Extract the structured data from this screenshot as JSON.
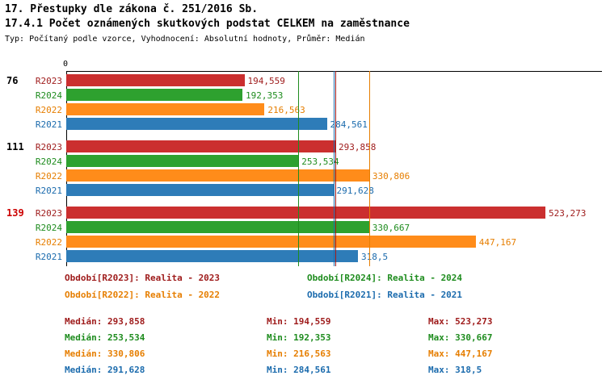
{
  "header": {
    "title_line1": "17. Přestupky dle zákona č. 251/2016 Sb.",
    "title_line2": "17.4.1 Počet oznámených skutkových podstat CELKEM na zaměstnance",
    "subtitle": "Typ: Počítaný podle vzorce, Vyhodnocení: Absolutní hodnoty, Průměr: Medián"
  },
  "colors": {
    "R2023": {
      "bar": "#CB2F2F",
      "text": "#9E1A1A"
    },
    "R2024": {
      "bar": "#2EA12F",
      "text": "#1E8C1E"
    },
    "R2022": {
      "bar": "#FF8C1A",
      "text": "#E67E00"
    },
    "R2021": {
      "bar": "#2E7CB8",
      "text": "#1B6BAD"
    },
    "axis": "#000000"
  },
  "chart_data": {
    "type": "bar",
    "orientation": "horizontal",
    "title": "17.4.1 Počet oznámených skutkových podstat CELKEM na zaměstnance",
    "x_axis": {
      "origin_label": "0",
      "min": 0,
      "max": 585,
      "grid": false
    },
    "series_order": [
      "R2023",
      "R2024",
      "R2022",
      "R2021"
    ],
    "groups": [
      {
        "label": "76",
        "label_color": "#000000",
        "bars": [
          {
            "series": "R2023",
            "value": 194.559,
            "value_label": "194,559"
          },
          {
            "series": "R2024",
            "value": 192.353,
            "value_label": "192,353"
          },
          {
            "series": "R2022",
            "value": 216.563,
            "value_label": "216,563"
          },
          {
            "series": "R2021",
            "value": 284.561,
            "value_label": "284,561"
          }
        ]
      },
      {
        "label": "111",
        "label_color": "#000000",
        "bars": [
          {
            "series": "R2023",
            "value": 293.858,
            "value_label": "293,858"
          },
          {
            "series": "R2024",
            "value": 253.534,
            "value_label": "253,534"
          },
          {
            "series": "R2022",
            "value": 330.806,
            "value_label": "330,806"
          },
          {
            "series": "R2021",
            "value": 291.628,
            "value_label": "291,628"
          }
        ]
      },
      {
        "label": "139",
        "label_color": "#CC0000",
        "bars": [
          {
            "series": "R2023",
            "value": 523.273,
            "value_label": "523,273"
          },
          {
            "series": "R2024",
            "value": 330.667,
            "value_label": "330,667"
          },
          {
            "series": "R2022",
            "value": 447.167,
            "value_label": "447,167"
          },
          {
            "series": "R2021",
            "value": 318.5,
            "value_label": "318,5"
          }
        ]
      }
    ],
    "median_lines": [
      {
        "series": "R2023",
        "value": 293.858
      },
      {
        "series": "R2024",
        "value": 253.534
      },
      {
        "series": "R2022",
        "value": 330.806
      },
      {
        "series": "R2021",
        "value": 291.628
      }
    ]
  },
  "legend": [
    {
      "series": "R2023",
      "label": "Období[R2023]: Realita - 2023"
    },
    {
      "series": "R2024",
      "label": "Období[R2024]: Realita - 2024"
    },
    {
      "series": "R2022",
      "label": "Období[R2022]: Realita - 2022"
    },
    {
      "series": "R2021",
      "label": "Období[R2021]: Realita - 2021"
    }
  ],
  "stats": [
    {
      "series": "R2023",
      "median": "Medián: 293,858",
      "min": "Min: 194,559",
      "max": "Max: 523,273"
    },
    {
      "series": "R2024",
      "median": "Medián: 253,534",
      "min": "Min: 192,353",
      "max": "Max: 330,667"
    },
    {
      "series": "R2022",
      "median": "Medián: 330,806",
      "min": "Min: 216,563",
      "max": "Max: 447,167"
    },
    {
      "series": "R2021",
      "median": "Medián: 291,628",
      "min": "Min: 284,561",
      "max": "Max: 318,5"
    }
  ]
}
